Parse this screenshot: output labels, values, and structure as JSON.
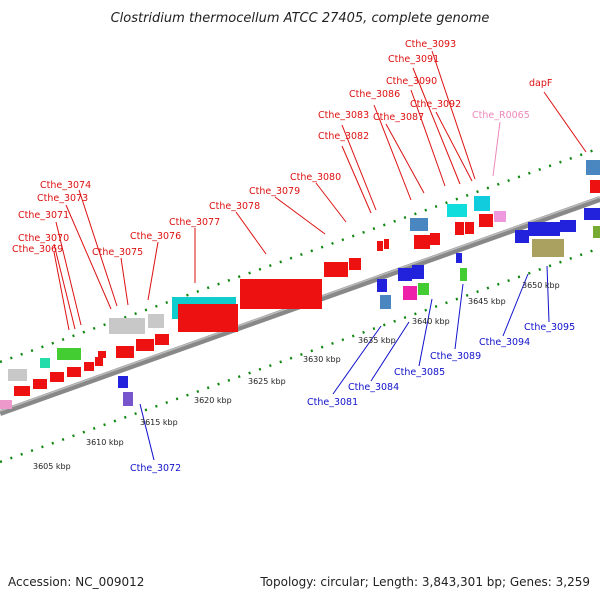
{
  "title": "Clostridium thermocellum ATCC 27405, complete genome",
  "footer": {
    "accession": "Accession: NC_009012",
    "summary": "Topology: circular; Length: 3,843,301 bp; Genes: 3,259"
  },
  "colors": {
    "forward_label": "#dd1111",
    "reverse_label": "#1111cc",
    "rna_label": "#ee88bb",
    "backbone": "#8a8a8a",
    "tick": "#118811"
  },
  "forward_labels": [
    "Cthe_3069",
    "Cthe_3070",
    "Cthe_3071",
    "Cthe_3073",
    "Cthe_3074",
    "Cthe_3075",
    "Cthe_3076",
    "Cthe_3077",
    "Cthe_3078",
    "Cthe_3079",
    "Cthe_3080",
    "Cthe_3082",
    "Cthe_3083",
    "Cthe_3086",
    "Cthe_3087",
    "Cthe_3090",
    "Cthe_3091",
    "Cthe_3092",
    "Cthe_3093",
    "dapF"
  ],
  "rna_labels": [
    "Cthe_R0065"
  ],
  "reverse_labels": [
    "Cthe_3072",
    "Cthe_3081",
    "Cthe_3084",
    "Cthe_3085",
    "Cthe_3089",
    "Cthe_3094",
    "Cthe_3095"
  ],
  "scale_labels": [
    "3605 kbp",
    "3610 kbp",
    "3615 kbp",
    "3620 kbp",
    "3625 kbp",
    "3630 kbp",
    "3635 kbp",
    "3640 kbp",
    "3645 kbp",
    "3650 kbp"
  ]
}
